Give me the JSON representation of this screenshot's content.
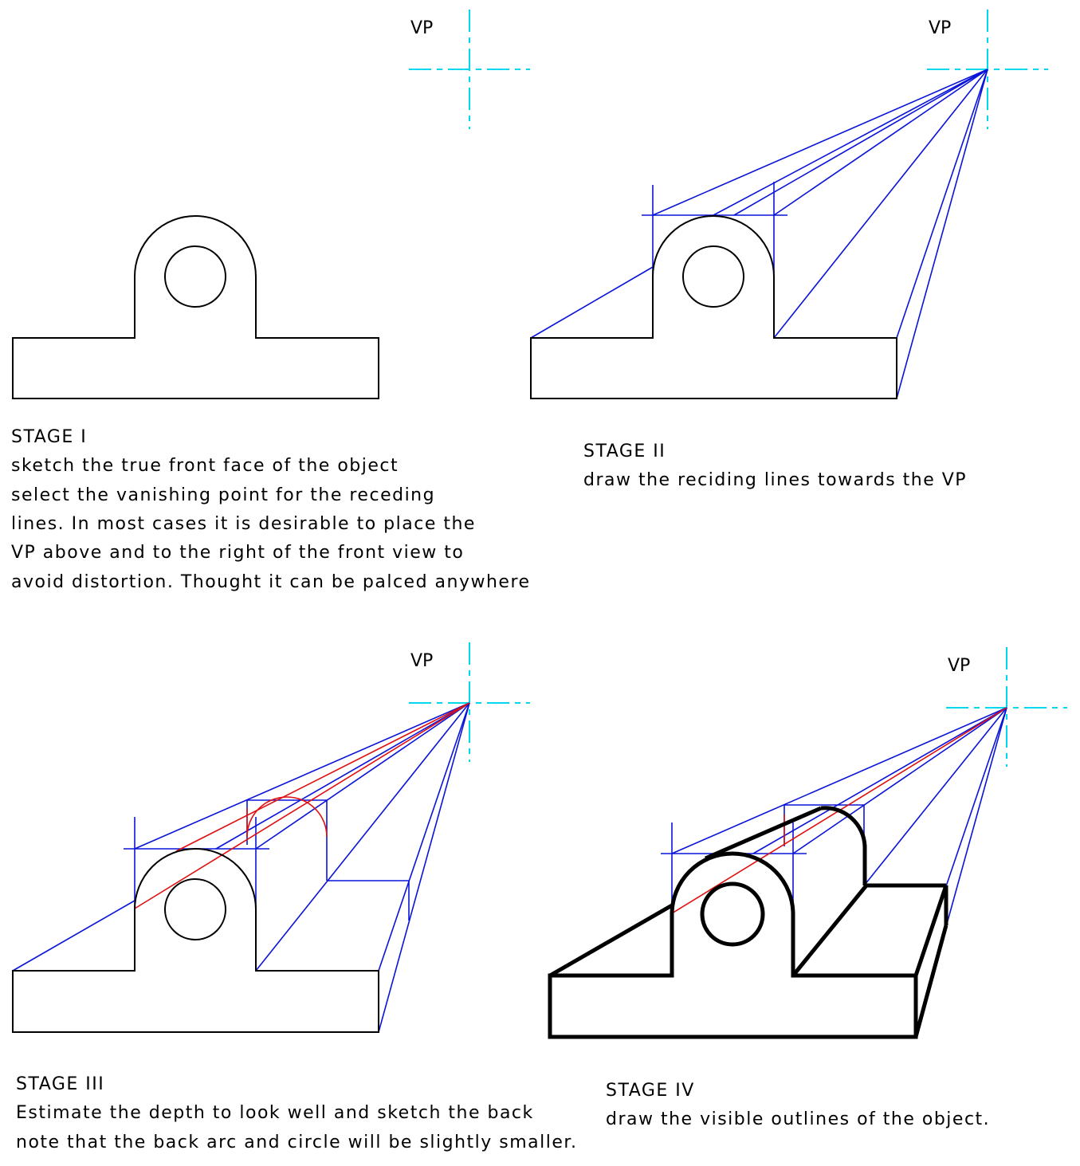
{
  "stages": [
    {
      "vp_label": "VP",
      "caption": [
        "STAGE I",
        "sketch the true front face of the object",
        "select the vanishing point for the receding",
        "lines. In most cases it is desirable to place the",
        "VP above and to the right of the front view to",
        "avoid distortion. Thought it can be palced anywhere"
      ]
    },
    {
      "vp_label": "VP",
      "caption": [
        "STAGE II",
        "draw the reciding lines towards the VP"
      ]
    },
    {
      "vp_label": "VP",
      "caption": [
        "STAGE III",
        "Estimate the depth to look well and sketch the back",
        "note that the back arc and circle will be slightly smaller."
      ]
    },
    {
      "vp_label": "VP",
      "caption": [
        "STAGE IV",
        "draw the visible outlines of the object."
      ]
    }
  ],
  "colors": {
    "outline": "#000000",
    "receding_lines": "#0a14d8",
    "back_construction": "#e01010",
    "vp_centerlines": "#00d8ee"
  }
}
